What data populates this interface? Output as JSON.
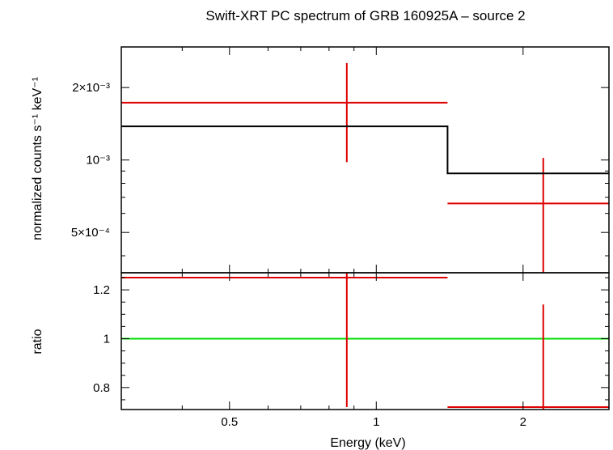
{
  "chart_data": {
    "title": "Swift-XRT PC spectrum of GRB 160925A – source 2",
    "xlabel": "Energy (keV)",
    "xscale": "log",
    "xlim": [
      0.3,
      3.0
    ],
    "xticks": [
      {
        "value": 0.5,
        "label": "0.5"
      },
      {
        "value": 1,
        "label": "1"
      },
      {
        "value": 2,
        "label": "2"
      }
    ],
    "panels": [
      {
        "type": "scatter",
        "role": "spectrum",
        "ylabel": "normalized counts s⁻¹ keV⁻¹",
        "yscale": "log",
        "ylim": [
          0.00034,
          0.00295
        ],
        "yticks": [
          {
            "value": 0.0005,
            "label": "5×10⁻⁴"
          },
          {
            "value": 0.001,
            "label": "10⁻³"
          },
          {
            "value": 0.002,
            "label": "2×10⁻³"
          }
        ],
        "series": [
          {
            "role": "data",
            "color": "#e00000",
            "points": [
              {
                "x": 0.87,
                "xerr": [
                  0.3,
                  1.4
                ],
                "y": 0.00173,
                "yerr": [
                  0.00098,
                  0.00253
                ]
              },
              {
                "x": 2.2,
                "xerr": [
                  1.4,
                  3.0
                ],
                "y": 0.00066,
                "yerr": [
                  0.00034,
                  0.00102
                ]
              }
            ]
          },
          {
            "role": "model",
            "color": "#000000",
            "type": "step",
            "steps": [
              {
                "x0": 0.3,
                "x1": 1.4,
                "y": 0.00138
              },
              {
                "x0": 1.4,
                "x1": 3.0,
                "y": 0.00088
              }
            ]
          }
        ]
      },
      {
        "type": "scatter",
        "role": "ratio",
        "ylabel": "ratio",
        "yscale": "linear",
        "ylim": [
          0.71,
          1.27
        ],
        "yticks": [
          {
            "value": 0.8,
            "label": "0.8"
          },
          {
            "value": 1,
            "label": "1"
          },
          {
            "value": 1.2,
            "label": "1.2"
          }
        ],
        "reference_line": {
          "y": 1,
          "color": "#00dd00"
        },
        "series": [
          {
            "role": "data",
            "color": "#e00000",
            "points": [
              {
                "x": 0.87,
                "xerr": [
                  0.3,
                  1.4
                ],
                "y": 1.25,
                "yerr": [
                  0.72,
                  1.27
                ]
              },
              {
                "x": 2.2,
                "xerr": [
                  1.4,
                  3.0
                ],
                "y": 0.72,
                "yerr": [
                  0.71,
                  1.14
                ]
              }
            ]
          }
        ]
      }
    ]
  }
}
